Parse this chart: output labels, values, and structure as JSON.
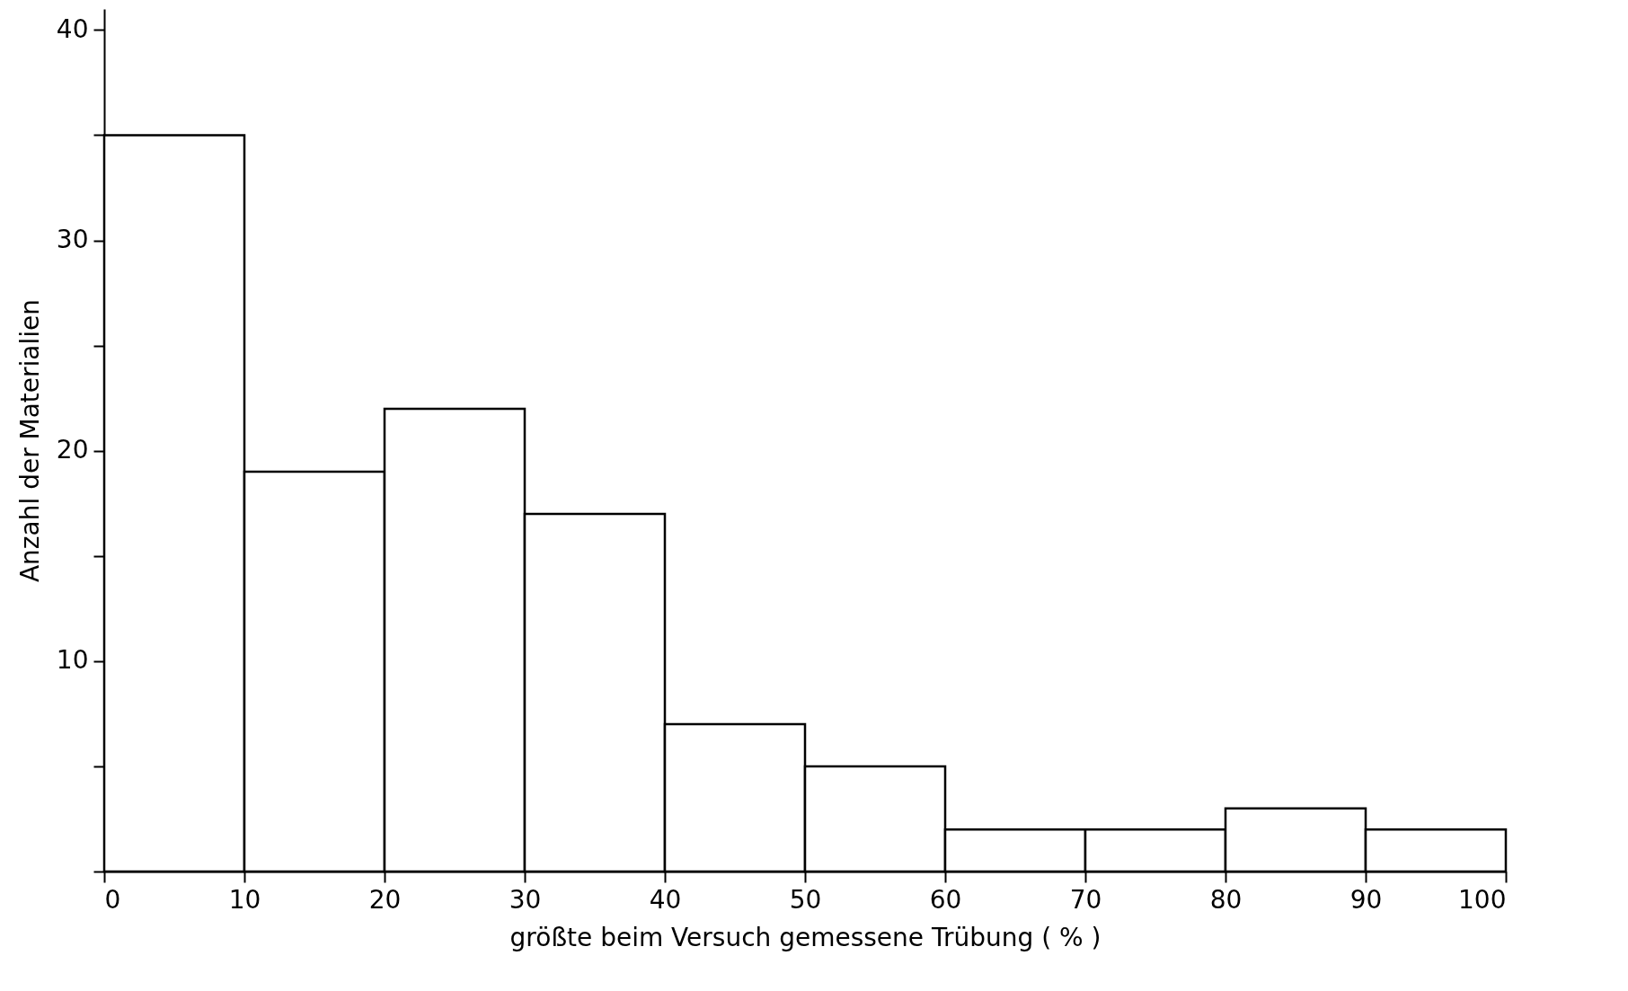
{
  "chart_data": {
    "type": "histogram",
    "xlabel": "größte beim Versuch gemessene Trübung ( % )",
    "ylabel": "Anzahl der Materialien",
    "bins": [
      0,
      10,
      20,
      30,
      40,
      50,
      60,
      70,
      80,
      90,
      100
    ],
    "values": [
      35,
      19,
      22,
      17,
      7,
      5,
      2,
      2,
      3,
      2
    ],
    "color": "#ffffff",
    "xlim": [
      0,
      100
    ],
    "xticks": [
      0,
      10,
      20,
      30,
      40,
      50,
      60,
      70,
      80,
      90,
      100
    ],
    "ylim": [
      0,
      41
    ],
    "yticks": [
      {
        "value": 0,
        "label": null
      },
      {
        "value": 5,
        "label": null
      },
      10,
      {
        "value": 15,
        "label": null
      },
      20,
      {
        "value": 25,
        "label": null
      },
      30,
      {
        "value": 35,
        "label": null
      },
      40
    ],
    "grid": false
  }
}
